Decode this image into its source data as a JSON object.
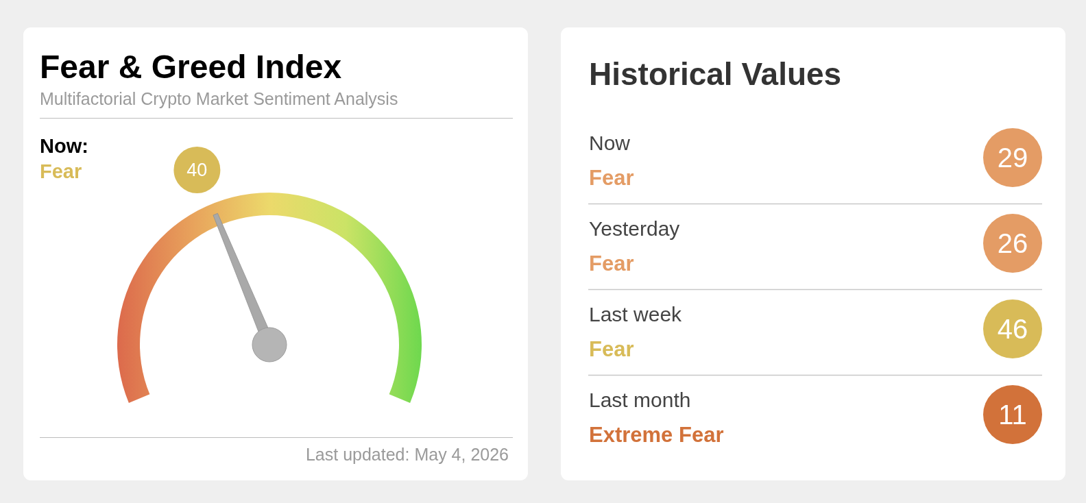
{
  "chart_data": [
    {
      "type": "other",
      "title": "Fear & Greed Index",
      "subtitle": "Multifactorial Crypto Market Sentiment Analysis",
      "values": [
        40
      ],
      "color": "#d8bb58",
      "data_labels": true,
      "annotations": [
        "Now:",
        "Fear",
        "Last updated: May 4, 2026"
      ]
    },
    {
      "type": "other",
      "title": "Historical Values",
      "categories": [
        "Now",
        "Yesterday",
        "Last week",
        "Last month"
      ],
      "values": [
        29,
        26,
        46,
        11
      ],
      "colors": [
        "#e49c65",
        "#e49c65",
        "#d8bb58",
        "#d2723a"
      ],
      "data_labels": true,
      "annotations": [
        "Fear",
        "Fear",
        "Fear",
        "Extreme Fear"
      ]
    }
  ]
}
